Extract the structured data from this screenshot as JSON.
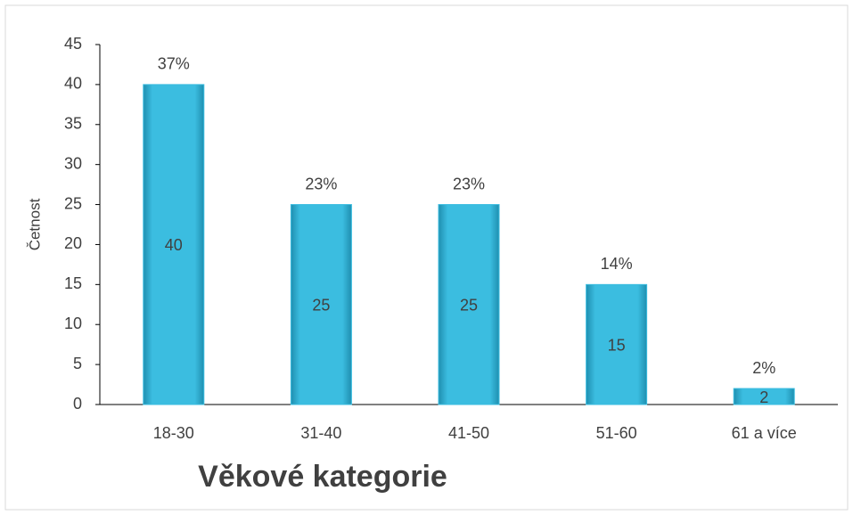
{
  "chart_data": {
    "type": "bar",
    "title": "Věkové kategorie",
    "y_label": "Četnost",
    "categories": [
      "18-30",
      "31-40",
      "41-50",
      "51-60",
      "61 a více"
    ],
    "values": [
      40,
      25,
      25,
      15,
      2
    ],
    "annotations": [
      "37%",
      "23%",
      "23%",
      "14%",
      "2%"
    ],
    "color": "#3bbde0",
    "ylim": [
      0,
      45
    ],
    "yticks": [
      0,
      5,
      10,
      15,
      20,
      25,
      30,
      35,
      40,
      45
    ],
    "grid": false
  }
}
